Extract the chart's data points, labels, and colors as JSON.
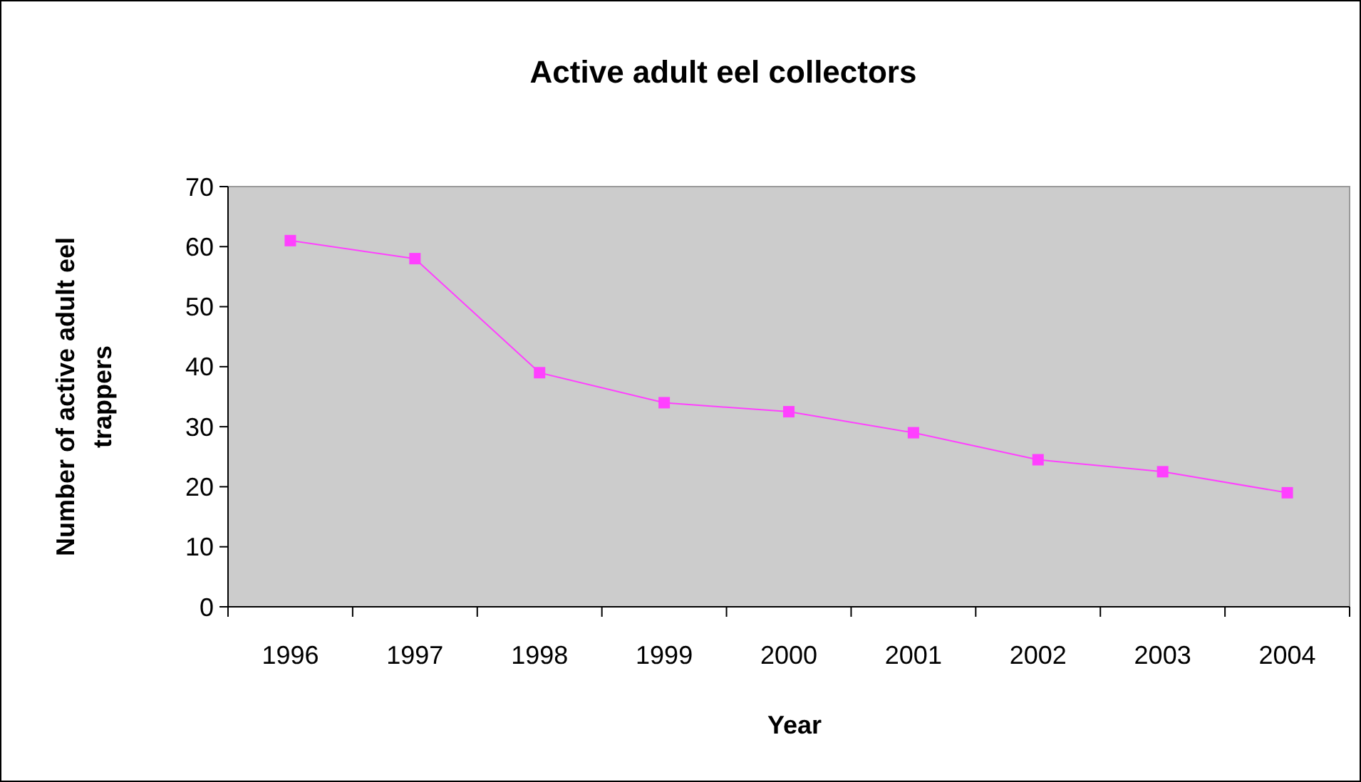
{
  "chart_data": {
    "type": "line",
    "title": "Active adult eel collectors",
    "xlabel": "Year",
    "ylabel": "Number of active adult eel trappers",
    "categories": [
      "1996",
      "1997",
      "1998",
      "1999",
      "2000",
      "2001",
      "2002",
      "2003",
      "2004"
    ],
    "series": [
      {
        "color": "#ff40ff",
        "values": [
          61,
          58,
          39,
          34,
          32.5,
          29,
          24.5,
          22.5,
          19
        ]
      }
    ],
    "ylim": [
      0,
      70
    ],
    "yticks": [
      0,
      10,
      20,
      30,
      40,
      50,
      60,
      70
    ],
    "grid": false,
    "marker": "square",
    "line_style": "solid"
  }
}
